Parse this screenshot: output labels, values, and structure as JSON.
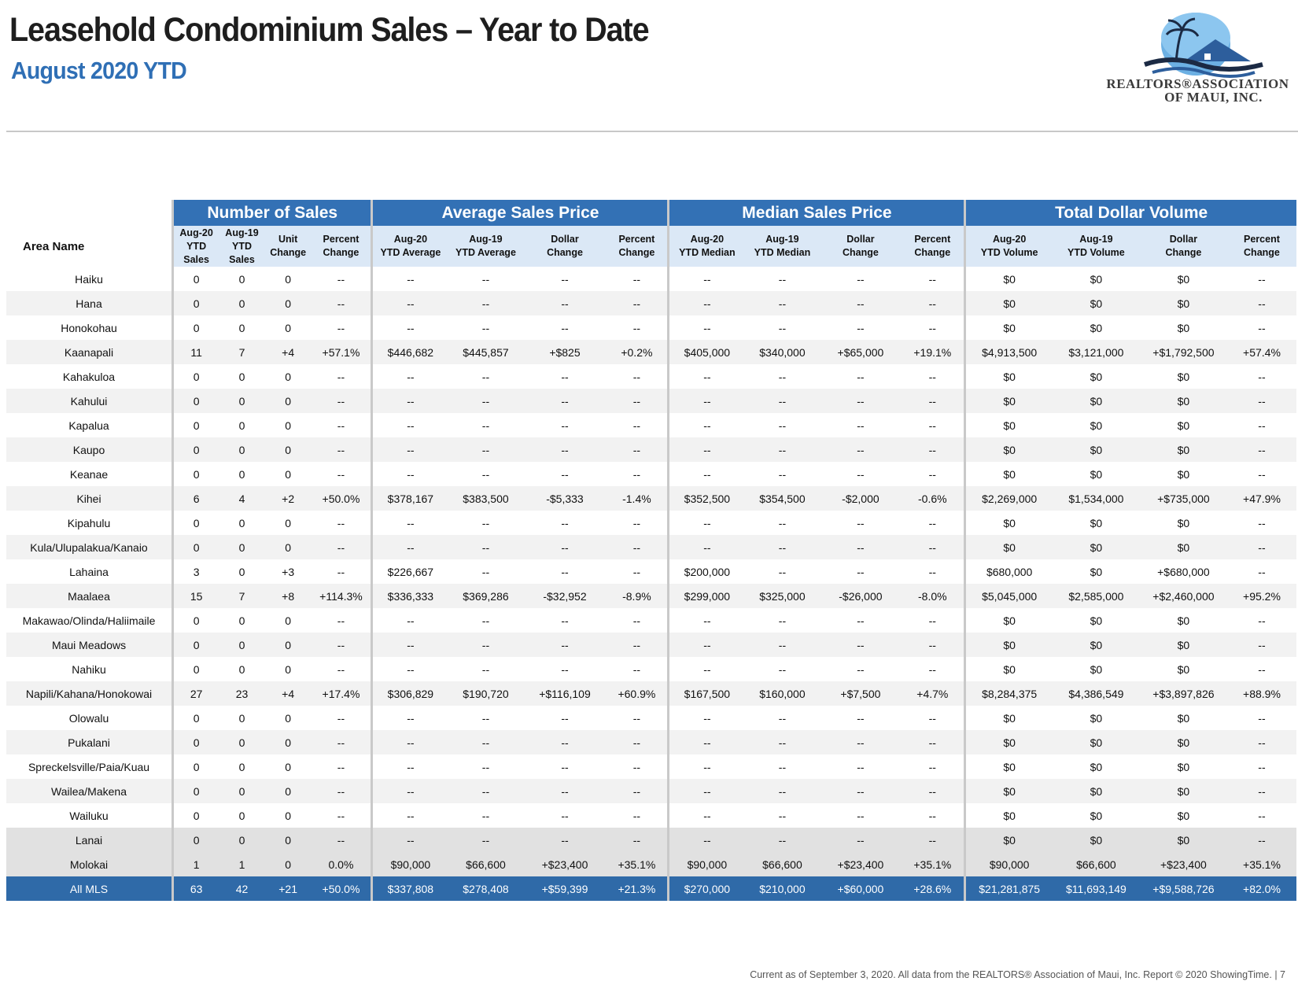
{
  "header": {
    "title": "Leasehold Condominium Sales – Year to Date",
    "subtitle": "August 2020 YTD"
  },
  "logo": {
    "line1": "REALTORS®ASSOCIATION",
    "line2": "OF MAUI, INC.",
    "colors": {
      "sky": "#5aa0d8",
      "roof": "#2d5e9c",
      "dark": "#1b2a44"
    }
  },
  "table": {
    "area_header": "Area Name",
    "groups": [
      "Number of Sales",
      "Average Sales Price",
      "Median Sales Price",
      "Total Dollar Volume"
    ],
    "subheaders": {
      "sales_aug20": [
        "Aug-20",
        "YTD",
        "Sales"
      ],
      "sales_aug19": [
        "Aug-19",
        "YTD",
        "Sales"
      ],
      "unit_change": [
        "Unit",
        "Change"
      ],
      "sales_pct": [
        "Percent",
        "Change"
      ],
      "avg_aug20": [
        "Aug-20",
        "YTD Average"
      ],
      "avg_aug19": [
        "Aug-19",
        "YTD Average"
      ],
      "avg_dollar": [
        "Dollar",
        "Change"
      ],
      "avg_pct": [
        "Percent",
        "Change"
      ],
      "med_aug20": [
        "Aug-20",
        "YTD Median"
      ],
      "med_aug19": [
        "Aug-19",
        "YTD Median"
      ],
      "med_dollar": [
        "Dollar",
        "Change"
      ],
      "med_pct": [
        "Percent",
        "Change"
      ],
      "vol_aug20": [
        "Aug-20",
        "YTD Volume"
      ],
      "vol_aug19": [
        "Aug-19",
        "YTD Volume"
      ],
      "vol_dollar": [
        "Dollar",
        "Change"
      ],
      "vol_pct": [
        "Percent",
        "Change"
      ]
    },
    "rows": [
      [
        "Haiku",
        "0",
        "0",
        "0",
        "--",
        "--",
        "--",
        "--",
        "--",
        "--",
        "--",
        "--",
        "--",
        "$0",
        "$0",
        "$0",
        "--"
      ],
      [
        "Hana",
        "0",
        "0",
        "0",
        "--",
        "--",
        "--",
        "--",
        "--",
        "--",
        "--",
        "--",
        "--",
        "$0",
        "$0",
        "$0",
        "--"
      ],
      [
        "Honokohau",
        "0",
        "0",
        "0",
        "--",
        "--",
        "--",
        "--",
        "--",
        "--",
        "--",
        "--",
        "--",
        "$0",
        "$0",
        "$0",
        "--"
      ],
      [
        "Kaanapali",
        "11",
        "7",
        "+4",
        "+57.1%",
        "$446,682",
        "$445,857",
        "+$825",
        "+0.2%",
        "$405,000",
        "$340,000",
        "+$65,000",
        "+19.1%",
        "$4,913,500",
        "$3,121,000",
        "+$1,792,500",
        "+57.4%"
      ],
      [
        "Kahakuloa",
        "0",
        "0",
        "0",
        "--",
        "--",
        "--",
        "--",
        "--",
        "--",
        "--",
        "--",
        "--",
        "$0",
        "$0",
        "$0",
        "--"
      ],
      [
        "Kahului",
        "0",
        "0",
        "0",
        "--",
        "--",
        "--",
        "--",
        "--",
        "--",
        "--",
        "--",
        "--",
        "$0",
        "$0",
        "$0",
        "--"
      ],
      [
        "Kapalua",
        "0",
        "0",
        "0",
        "--",
        "--",
        "--",
        "--",
        "--",
        "--",
        "--",
        "--",
        "--",
        "$0",
        "$0",
        "$0",
        "--"
      ],
      [
        "Kaupo",
        "0",
        "0",
        "0",
        "--",
        "--",
        "--",
        "--",
        "--",
        "--",
        "--",
        "--",
        "--",
        "$0",
        "$0",
        "$0",
        "--"
      ],
      [
        "Keanae",
        "0",
        "0",
        "0",
        "--",
        "--",
        "--",
        "--",
        "--",
        "--",
        "--",
        "--",
        "--",
        "$0",
        "$0",
        "$0",
        "--"
      ],
      [
        "Kihei",
        "6",
        "4",
        "+2",
        "+50.0%",
        "$378,167",
        "$383,500",
        "-$5,333",
        "-1.4%",
        "$352,500",
        "$354,500",
        "-$2,000",
        "-0.6%",
        "$2,269,000",
        "$1,534,000",
        "+$735,000",
        "+47.9%"
      ],
      [
        "Kipahulu",
        "0",
        "0",
        "0",
        "--",
        "--",
        "--",
        "--",
        "--",
        "--",
        "--",
        "--",
        "--",
        "$0",
        "$0",
        "$0",
        "--"
      ],
      [
        "Kula/Ulupalakua/Kanaio",
        "0",
        "0",
        "0",
        "--",
        "--",
        "--",
        "--",
        "--",
        "--",
        "--",
        "--",
        "--",
        "$0",
        "$0",
        "$0",
        "--"
      ],
      [
        "Lahaina",
        "3",
        "0",
        "+3",
        "--",
        "$226,667",
        "--",
        "--",
        "--",
        "$200,000",
        "--",
        "--",
        "--",
        "$680,000",
        "$0",
        "+$680,000",
        "--"
      ],
      [
        "Maalaea",
        "15",
        "7",
        "+8",
        "+114.3%",
        "$336,333",
        "$369,286",
        "-$32,952",
        "-8.9%",
        "$299,000",
        "$325,000",
        "-$26,000",
        "-8.0%",
        "$5,045,000",
        "$2,585,000",
        "+$2,460,000",
        "+95.2%"
      ],
      [
        "Makawao/Olinda/Haliimaile",
        "0",
        "0",
        "0",
        "--",
        "--",
        "--",
        "--",
        "--",
        "--",
        "--",
        "--",
        "--",
        "$0",
        "$0",
        "$0",
        "--"
      ],
      [
        "Maui Meadows",
        "0",
        "0",
        "0",
        "--",
        "--",
        "--",
        "--",
        "--",
        "--",
        "--",
        "--",
        "--",
        "$0",
        "$0",
        "$0",
        "--"
      ],
      [
        "Nahiku",
        "0",
        "0",
        "0",
        "--",
        "--",
        "--",
        "--",
        "--",
        "--",
        "--",
        "--",
        "--",
        "$0",
        "$0",
        "$0",
        "--"
      ],
      [
        "Napili/Kahana/Honokowai",
        "27",
        "23",
        "+4",
        "+17.4%",
        "$306,829",
        "$190,720",
        "+$116,109",
        "+60.9%",
        "$167,500",
        "$160,000",
        "+$7,500",
        "+4.7%",
        "$8,284,375",
        "$4,386,549",
        "+$3,897,826",
        "+88.9%"
      ],
      [
        "Olowalu",
        "0",
        "0",
        "0",
        "--",
        "--",
        "--",
        "--",
        "--",
        "--",
        "--",
        "--",
        "--",
        "$0",
        "$0",
        "$0",
        "--"
      ],
      [
        "Pukalani",
        "0",
        "0",
        "0",
        "--",
        "--",
        "--",
        "--",
        "--",
        "--",
        "--",
        "--",
        "--",
        "$0",
        "$0",
        "$0",
        "--"
      ],
      [
        "Spreckelsville/Paia/Kuau",
        "0",
        "0",
        "0",
        "--",
        "--",
        "--",
        "--",
        "--",
        "--",
        "--",
        "--",
        "--",
        "$0",
        "$0",
        "$0",
        "--"
      ],
      [
        "Wailea/Makena",
        "0",
        "0",
        "0",
        "--",
        "--",
        "--",
        "--",
        "--",
        "--",
        "--",
        "--",
        "--",
        "$0",
        "$0",
        "$0",
        "--"
      ],
      [
        "Wailuku",
        "0",
        "0",
        "0",
        "--",
        "--",
        "--",
        "--",
        "--",
        "--",
        "--",
        "--",
        "--",
        "$0",
        "$0",
        "$0",
        "--"
      ],
      [
        "Lanai",
        "0",
        "0",
        "0",
        "--",
        "--",
        "--",
        "--",
        "--",
        "--",
        "--",
        "--",
        "--",
        "$0",
        "$0",
        "$0",
        "--"
      ],
      [
        "Molokai",
        "1",
        "1",
        "0",
        "0.0%",
        "$90,000",
        "$66,600",
        "+$23,400",
        "+35.1%",
        "$90,000",
        "$66,600",
        "+$23,400",
        "+35.1%",
        "$90,000",
        "$66,600",
        "+$23,400",
        "+35.1%"
      ]
    ],
    "gray_rows": [
      "Lanai",
      "Molokai"
    ],
    "total": [
      "All MLS",
      "63",
      "42",
      "+21",
      "+50.0%",
      "$337,808",
      "$278,408",
      "+$59,399",
      "+21.3%",
      "$270,000",
      "$210,000",
      "+$60,000",
      "+28.6%",
      "$21,281,875",
      "$11,693,149",
      "+$9,588,726",
      "+82.0%"
    ]
  },
  "footer": "Current as of September 3, 2020. All data from the REALTORS® Association of Maui, Inc. Report © 2020 ShowingTime.  |  7"
}
